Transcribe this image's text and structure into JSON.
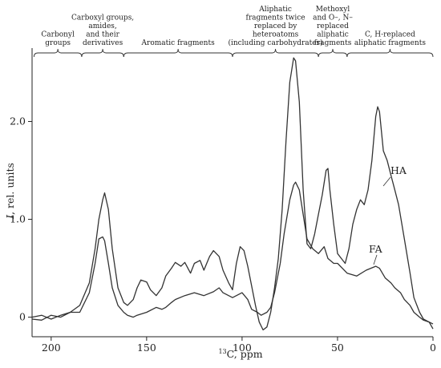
{
  "chart_data": {
    "type": "line",
    "xlabel_sup": "13",
    "xlabel_main": "C, ppm",
    "ylabel_italic": "I",
    "ylabel_rest": ", rel. units",
    "x_reversed": true,
    "xlim": [
      210,
      0
    ],
    "ylim": [
      -0.2,
      2.75
    ],
    "xticks": [
      {
        "value": 200,
        "label": "200"
      },
      {
        "value": 150,
        "label": "150"
      },
      {
        "value": 100,
        "label": "100"
      },
      {
        "value": 50,
        "label": "50"
      },
      {
        "value": 0,
        "label": "0"
      }
    ],
    "yticks": [
      {
        "value": 0,
        "label": "0"
      },
      {
        "value": 1,
        "label": "1.0"
      },
      {
        "value": 2,
        "label": "2.0"
      }
    ],
    "grid": false,
    "regions": [
      {
        "from": 209,
        "to": 184,
        "lines": [
          "Carbonyl",
          "groups"
        ]
      },
      {
        "from": 184,
        "to": 162,
        "lines": [
          "Carboxyl groups,",
          "amides,",
          "and their",
          "derivatives"
        ]
      },
      {
        "from": 162,
        "to": 105,
        "lines": [
          "Aromatic fragments"
        ]
      },
      {
        "from": 105,
        "to": 60,
        "lines": [
          "Aliphatic",
          "fragments twice",
          "replaced by",
          "heteroatoms",
          "(including carbohydrates)"
        ]
      },
      {
        "from": 60,
        "to": 45,
        "lines": [
          "Methoxyl",
          "and O–, N–",
          "replaced",
          "aliphatic",
          "fragments"
        ]
      },
      {
        "from": 45,
        "to": 0,
        "lines": [
          "C, H-replaced",
          "aliphatic fragments"
        ]
      }
    ],
    "series": [
      {
        "name": "HA",
        "color": "#333333",
        "x": [
          210,
          205,
          200,
          195,
          190,
          185,
          180,
          177,
          175,
          173,
          172,
          170,
          168,
          165,
          162,
          160,
          157,
          155,
          153,
          150,
          148,
          145,
          142,
          140,
          137,
          135,
          132,
          130,
          127,
          125,
          122,
          120,
          117,
          115,
          112,
          110,
          107,
          105,
          103,
          101,
          99,
          97,
          95,
          93,
          91,
          89,
          87,
          85,
          83,
          81,
          79,
          77,
          75,
          73,
          72,
          70,
          68,
          66,
          64,
          62,
          60,
          58,
          56,
          55,
          54,
          52,
          50,
          48,
          46,
          44,
          42,
          40,
          38,
          36,
          34,
          32,
          30,
          29,
          28,
          26,
          24,
          22,
          20,
          18,
          15,
          12,
          10,
          7,
          5,
          2,
          0
        ],
        "y": [
          -0.02,
          -0.03,
          0.02,
          0.0,
          0.05,
          0.12,
          0.35,
          0.7,
          1.0,
          1.2,
          1.27,
          1.1,
          0.7,
          0.3,
          0.15,
          0.12,
          0.18,
          0.3,
          0.38,
          0.36,
          0.28,
          0.22,
          0.3,
          0.42,
          0.5,
          0.56,
          0.52,
          0.56,
          0.45,
          0.55,
          0.58,
          0.48,
          0.62,
          0.68,
          0.62,
          0.48,
          0.35,
          0.28,
          0.55,
          0.72,
          0.68,
          0.52,
          0.32,
          0.12,
          -0.05,
          -0.13,
          -0.1,
          0.05,
          0.3,
          0.6,
          1.1,
          1.8,
          2.4,
          2.65,
          2.62,
          2.2,
          1.3,
          0.75,
          0.7,
          0.85,
          1.05,
          1.25,
          1.5,
          1.52,
          1.3,
          0.95,
          0.65,
          0.6,
          0.55,
          0.7,
          0.95,
          1.1,
          1.2,
          1.15,
          1.3,
          1.6,
          2.05,
          2.15,
          2.1,
          1.7,
          1.6,
          1.45,
          1.3,
          1.15,
          0.8,
          0.45,
          0.2,
          0.05,
          -0.02,
          -0.05,
          -0.07
        ]
      },
      {
        "name": "FA",
        "color": "#333333",
        "x": [
          210,
          205,
          200,
          195,
          190,
          185,
          180,
          177,
          175,
          173,
          172,
          170,
          168,
          165,
          162,
          160,
          157,
          155,
          150,
          145,
          142,
          140,
          137,
          135,
          130,
          125,
          120,
          115,
          112,
          110,
          105,
          100,
          97,
          95,
          92,
          90,
          87,
          85,
          83,
          80,
          78,
          75,
          73,
          72,
          70,
          68,
          66,
          63,
          60,
          57,
          55,
          52,
          50,
          45,
          40,
          35,
          30,
          28,
          25,
          22,
          20,
          17,
          15,
          12,
          10,
          7,
          5,
          2,
          0
        ],
        "y": [
          0.0,
          0.02,
          -0.02,
          0.02,
          0.05,
          0.05,
          0.25,
          0.55,
          0.8,
          0.82,
          0.78,
          0.55,
          0.3,
          0.12,
          0.05,
          0.02,
          0.0,
          0.02,
          0.05,
          0.1,
          0.08,
          0.1,
          0.15,
          0.18,
          0.22,
          0.25,
          0.22,
          0.26,
          0.3,
          0.25,
          0.2,
          0.25,
          0.18,
          0.08,
          0.05,
          0.02,
          0.05,
          0.1,
          0.25,
          0.55,
          0.85,
          1.2,
          1.35,
          1.38,
          1.3,
          1.05,
          0.8,
          0.7,
          0.65,
          0.72,
          0.6,
          0.55,
          0.55,
          0.45,
          0.42,
          0.48,
          0.52,
          0.5,
          0.4,
          0.35,
          0.3,
          0.25,
          0.18,
          0.12,
          0.05,
          0.0,
          -0.03,
          -0.05,
          -0.12
        ]
      }
    ]
  }
}
